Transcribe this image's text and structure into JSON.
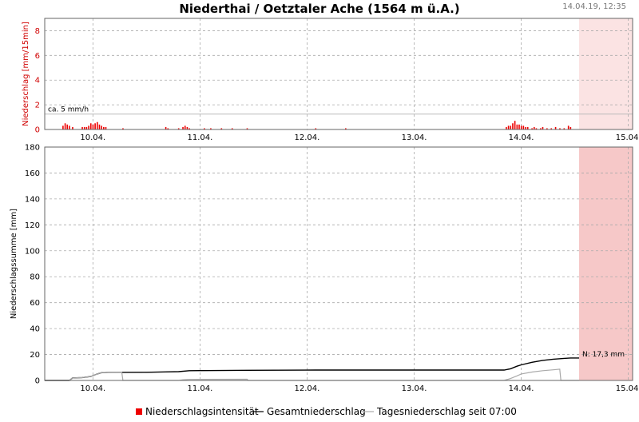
{
  "header": {
    "title": "Niederthai / Oetztaler Ache (1564 m ü.A.)",
    "timestamp": "14.04.19, 12:35"
  },
  "chart_data": [
    {
      "type": "bar",
      "name": "intensity",
      "ylabel": "Niederschlag [mm/15min]",
      "ylim": [
        0,
        9
      ],
      "y_ticks": [
        0,
        2,
        4,
        6,
        8
      ],
      "x_tick_labels": [
        "10.04.",
        "11.04.",
        "12.04.",
        "13.04.",
        "14.04.",
        "15.04."
      ],
      "x_unit": "days since 10.04. 00:00",
      "xlim": [
        -0.45,
        5.04
      ],
      "forecast_start": 4.54,
      "reference_line": {
        "value": 1.25,
        "label": "ca. 5 mm/h"
      },
      "series": [
        {
          "name": "Niederschlagsintensität",
          "color": "#ee0000",
          "points": [
            [
              -0.28,
              0.3
            ],
            [
              -0.26,
              0.5
            ],
            [
              -0.24,
              0.4
            ],
            [
              -0.22,
              0.3
            ],
            [
              -0.19,
              0.2
            ],
            [
              -0.1,
              0.2
            ],
            [
              -0.08,
              0.2
            ],
            [
              -0.06,
              0.2
            ],
            [
              -0.04,
              0.3
            ],
            [
              -0.02,
              0.5
            ],
            [
              0.0,
              0.4
            ],
            [
              0.02,
              0.5
            ],
            [
              0.04,
              0.6
            ],
            [
              0.06,
              0.4
            ],
            [
              0.08,
              0.3
            ],
            [
              0.1,
              0.2
            ],
            [
              0.12,
              0.2
            ],
            [
              0.28,
              0.1
            ],
            [
              0.68,
              0.2
            ],
            [
              0.7,
              0.1
            ],
            [
              0.8,
              0.1
            ],
            [
              0.84,
              0.2
            ],
            [
              0.86,
              0.3
            ],
            [
              0.88,
              0.2
            ],
            [
              0.9,
              0.1
            ],
            [
              1.04,
              0.1
            ],
            [
              1.1,
              0.1
            ],
            [
              1.2,
              0.1
            ],
            [
              1.3,
              0.1
            ],
            [
              1.44,
              0.1
            ],
            [
              2.08,
              0.1
            ],
            [
              2.36,
              0.1
            ],
            [
              3.86,
              0.2
            ],
            [
              3.88,
              0.3
            ],
            [
              3.9,
              0.3
            ],
            [
              3.92,
              0.5
            ],
            [
              3.94,
              0.7
            ],
            [
              3.96,
              0.4
            ],
            [
              3.98,
              0.4
            ],
            [
              4.0,
              0.3
            ],
            [
              4.02,
              0.3
            ],
            [
              4.04,
              0.2
            ],
            [
              4.06,
              0.2
            ],
            [
              4.1,
              0.1
            ],
            [
              4.12,
              0.2
            ],
            [
              4.14,
              0.1
            ],
            [
              4.18,
              0.1
            ],
            [
              4.2,
              0.2
            ],
            [
              4.24,
              0.1
            ],
            [
              4.28,
              0.1
            ],
            [
              4.32,
              0.2
            ],
            [
              4.36,
              0.1
            ],
            [
              4.4,
              0.1
            ],
            [
              4.44,
              0.3
            ],
            [
              4.46,
              0.2
            ]
          ]
        }
      ]
    },
    {
      "type": "line",
      "name": "cumulative",
      "ylabel": "Niederschlagssumme [mm]",
      "ylim": [
        0,
        180
      ],
      "y_ticks": [
        0,
        20,
        40,
        60,
        80,
        100,
        120,
        140,
        160,
        180
      ],
      "x_tick_labels": [
        "10.04.",
        "11.04.",
        "12.04.",
        "13.04.",
        "14.04.",
        "15.04."
      ],
      "x_unit": "days since 10.04. 00:00",
      "xlim": [
        -0.45,
        5.04
      ],
      "forecast_start": 4.54,
      "annotation": "N: 17,3 mm",
      "series": [
        {
          "name": "Gesamtniederschlag",
          "color": "#000000",
          "points": [
            [
              -0.45,
              0
            ],
            [
              -0.22,
              0
            ],
            [
              -0.19,
              2
            ],
            [
              -0.1,
              2.2
            ],
            [
              -0.02,
              3
            ],
            [
              0.04,
              5
            ],
            [
              0.08,
              6
            ],
            [
              0.14,
              6.2
            ],
            [
              0.5,
              6.3
            ],
            [
              0.68,
              6.6
            ],
            [
              0.8,
              6.8
            ],
            [
              0.9,
              7.5
            ],
            [
              1.0,
              7.6
            ],
            [
              1.44,
              7.8
            ],
            [
              2.08,
              8
            ],
            [
              3.0,
              8
            ],
            [
              3.84,
              8
            ],
            [
              3.9,
              9
            ],
            [
              3.96,
              11
            ],
            [
              4.0,
              12
            ],
            [
              4.1,
              14
            ],
            [
              4.2,
              15.5
            ],
            [
              4.3,
              16.4
            ],
            [
              4.4,
              17
            ],
            [
              4.46,
              17.3
            ],
            [
              4.54,
              17.3
            ]
          ]
        },
        {
          "name": "Tagesniederschlag seit 07:00",
          "color": "#aaaaaa",
          "points": [
            [
              -0.45,
              0
            ],
            [
              -0.22,
              0
            ],
            [
              -0.19,
              2
            ],
            [
              -0.1,
              2.2
            ],
            [
              -0.02,
              3
            ],
            [
              0.04,
              5
            ],
            [
              0.08,
              6
            ],
            [
              0.14,
              6.2
            ],
            [
              0.27,
              6.2
            ],
            [
              0.28,
              0
            ],
            [
              0.8,
              0
            ],
            [
              0.84,
              0.5
            ],
            [
              0.9,
              0.8
            ],
            [
              1.44,
              0.9
            ],
            [
              1.45,
              0
            ],
            [
              3.84,
              0
            ],
            [
              3.9,
              1.5
            ],
            [
              3.96,
              3.5
            ],
            [
              4.0,
              5
            ],
            [
              4.1,
              6.5
            ],
            [
              4.2,
              7.5
            ],
            [
              4.3,
              8.2
            ],
            [
              4.36,
              8.7
            ],
            [
              4.37,
              0
            ],
            [
              4.54,
              0
            ]
          ]
        }
      ]
    }
  ],
  "legend": {
    "intensity": "Niederschlagsintensität",
    "total": "Gesamtniederschlag",
    "daily": "Tagesniederschlag seit 07:00"
  }
}
